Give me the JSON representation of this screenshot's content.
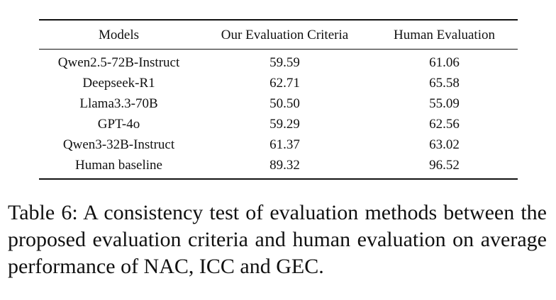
{
  "table": {
    "headers": [
      "Models",
      "Our Evaluation Criteria",
      "Human Evaluation"
    ],
    "rows": [
      {
        "model": "Qwen2.5-72B-Instruct",
        "ours": "59.59",
        "human": "61.06"
      },
      {
        "model": "Deepseek-R1",
        "ours": "62.71",
        "human": "65.58"
      },
      {
        "model": "Llama3.3-70B",
        "ours": "50.50",
        "human": "55.09"
      },
      {
        "model": "GPT-4o",
        "ours": "59.29",
        "human": "62.56"
      },
      {
        "model": "Qwen3-32B-Instruct",
        "ours": "61.37",
        "human": "63.02"
      },
      {
        "model": "Human baseline",
        "ours": "89.32",
        "human": "96.52"
      }
    ]
  },
  "caption": {
    "label": "Table 6:",
    "text": "A consistency test of evaluation methods between the proposed evaluation criteria and human evaluation on average performance of NAC, ICC and GEC."
  }
}
